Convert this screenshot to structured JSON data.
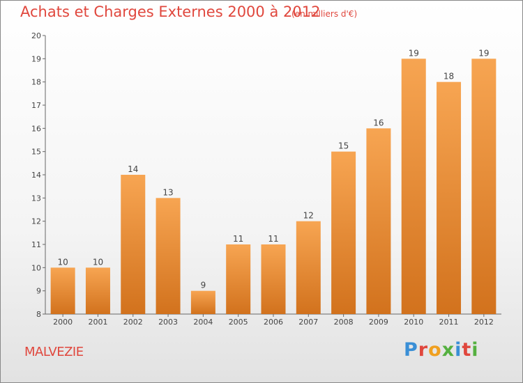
{
  "header": {
    "title": "Achats et Charges Externes 2000 à 2012",
    "subtitle": "(en milliers d'€)"
  },
  "footer": {
    "town": "MALVEZIE",
    "logo_text": "Proxiti"
  },
  "colors": {
    "title": "#e0473d",
    "bar_top": "#f7a552",
    "bar_bottom": "#d2721d",
    "logo_letters": [
      "#3a8fd6",
      "#e0473d",
      "#f0a020",
      "#55b040",
      "#3a8fd6",
      "#e0473d",
      "#55b040"
    ]
  },
  "chart_data": {
    "type": "bar",
    "categories": [
      "2000",
      "2001",
      "2002",
      "2003",
      "2004",
      "2005",
      "2006",
      "2007",
      "2008",
      "2009",
      "2010",
      "2011",
      "2012"
    ],
    "values": [
      10,
      10,
      14,
      13,
      9,
      11,
      11,
      12,
      15,
      16,
      19,
      18,
      19
    ],
    "ylim": [
      8,
      20
    ],
    "yticks": [
      8,
      9,
      10,
      11,
      12,
      13,
      14,
      15,
      16,
      17,
      18,
      19,
      20
    ],
    "grid": false,
    "data_labels": true
  }
}
